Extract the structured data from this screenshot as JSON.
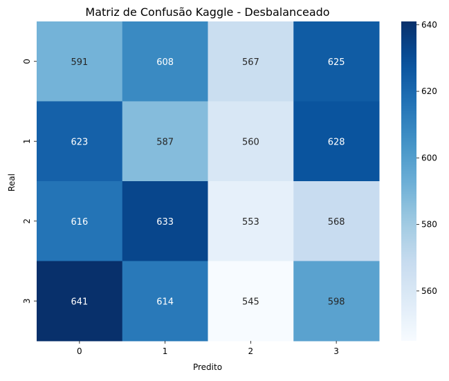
{
  "chart_data": {
    "type": "heatmap",
    "title": "Matriz de Confusão Kaggle - Desbalanceado",
    "xlabel": "Predito",
    "ylabel": "Real",
    "x_categories": [
      "0",
      "1",
      "2",
      "3"
    ],
    "y_categories": [
      "0",
      "1",
      "2",
      "3"
    ],
    "values": [
      [
        591,
        608,
        567,
        625
      ],
      [
        623,
        587,
        560,
        628
      ],
      [
        616,
        633,
        553,
        568
      ],
      [
        641,
        614,
        545,
        598
      ]
    ],
    "colormap": "Blues",
    "value_range": [
      545,
      641
    ],
    "colorbar_ticks": [
      560,
      580,
      600,
      620,
      640
    ],
    "annotations": true,
    "grid": false,
    "colors": {
      "low": "#f7fbff",
      "high": "#08306b",
      "text_light": "#ffffff",
      "text_dark": "#262626"
    }
  }
}
